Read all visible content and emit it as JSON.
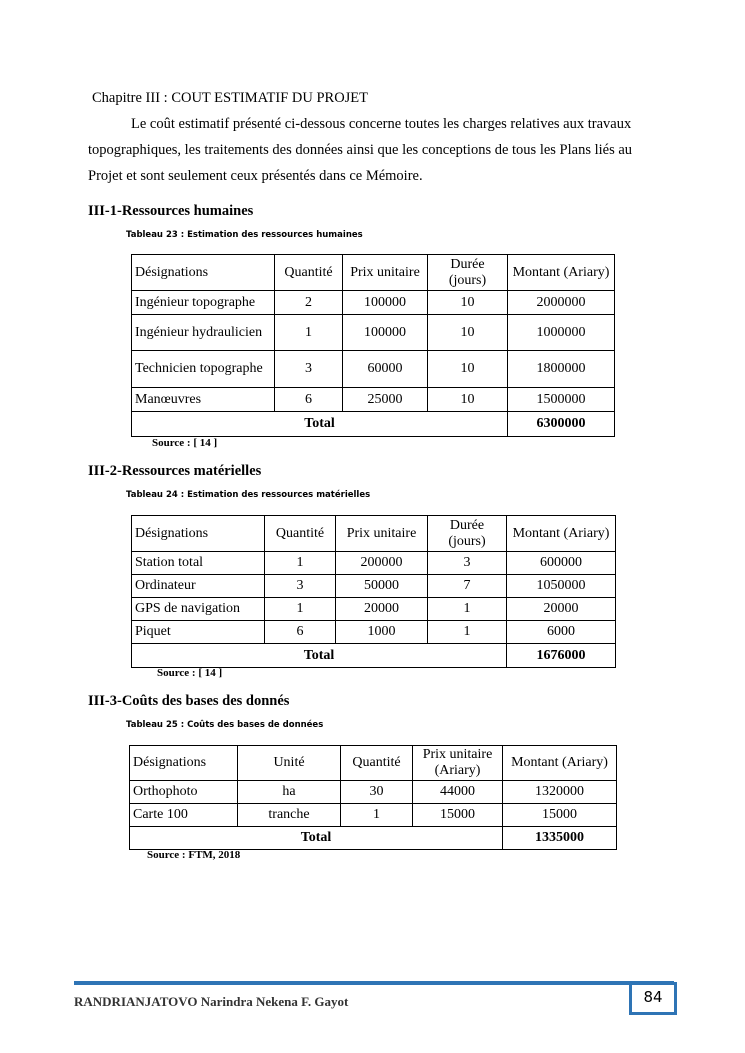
{
  "chapter_title": "Chapitre III   : COUT ESTIMATIF DU PROJET",
  "intro_line1": "Le coût estimatif présenté ci-dessous concerne toutes les charges relatives aux travaux",
  "intro_line2": "topographiques, les traitements des données ainsi que les conceptions de tous les Plans liés au",
  "intro_line3": "Projet et sont seulement ceux présentés dans ce Mémoire.",
  "s1": {
    "heading": "III-1-Ressources humaines",
    "caption": "Tableau 23 : Estimation des ressources humaines",
    "headers": [
      "Désignations",
      "Quantité",
      "Prix unitaire",
      "Durée (jours)",
      "Montant (Ariary)"
    ],
    "rows": [
      [
        "Ingénieur topographe",
        "2",
        "100000",
        "10",
        "2000000"
      ],
      [
        "Ingénieur hydraulicien",
        "1",
        "100000",
        "10",
        "1000000"
      ],
      [
        "Technicien topographe",
        "3",
        "60000",
        "10",
        "1800000"
      ],
      [
        "Manœuvres",
        "6",
        "25000",
        "10",
        "1500000"
      ]
    ],
    "total_label": "Total",
    "total": "6300000",
    "source": "Source : [ 14 ]"
  },
  "s2": {
    "heading": "III-2-Ressources matérielles",
    "caption": "Tableau 24 : Estimation des ressources matérielles",
    "headers": [
      "Désignations",
      "Quantité",
      "Prix unitaire",
      "Durée (jours)",
      "Montant (Ariary)"
    ],
    "rows": [
      [
        "Station total",
        "1",
        "200000",
        "3",
        "600000"
      ],
      [
        "Ordinateur",
        "3",
        "50000",
        "7",
        "1050000"
      ],
      [
        "GPS de navigation",
        "1",
        "20000",
        "1",
        "20000"
      ],
      [
        "Piquet",
        "6",
        "1000",
        "1",
        "6000"
      ]
    ],
    "total_label": "Total",
    "total": "1676000",
    "source": "Source : [ 14 ]"
  },
  "s3": {
    "heading": "III-3-Coûts des bases des donnés",
    "caption": "Tableau 25 : Coûts des bases de données",
    "headers": [
      "Désignations",
      "Unité",
      "Quantité",
      "Prix unitaire (Ariary)",
      "Montant (Ariary)"
    ],
    "rows": [
      [
        "Orthophoto",
        "ha",
        "30",
        "44000",
        "1320000"
      ],
      [
        "Carte 100",
        "tranche",
        "1",
        "15000",
        "15000"
      ]
    ],
    "total_label": "Total",
    "total": "1335000",
    "source": "Source : FTM, 2018"
  },
  "footer": {
    "author": "RANDRIANJATOVO  Narindra  Nekena  F.  Gayot",
    "page_number": "84",
    "accent_color": "#2e74b5"
  }
}
